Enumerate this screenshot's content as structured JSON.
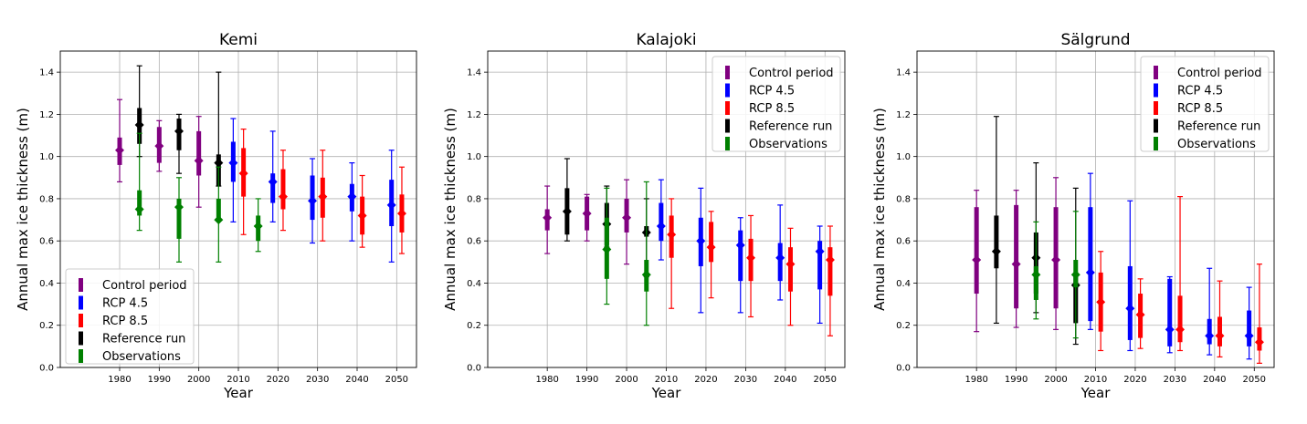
{
  "colors": {
    "control": "#800080",
    "rcp45": "#0000ff",
    "rcp85": "#ff0000",
    "reference": "#000000",
    "observations": "#008000",
    "grid": "#b0b0b0",
    "axis": "#000000"
  },
  "chart_data": [
    {
      "type": "errorbar",
      "title": "Kemi",
      "xlabel": "Year",
      "ylabel": "Annual max ice thickness (m)",
      "xlim": [
        1965,
        2055
      ],
      "ylim": [
        0.0,
        1.5
      ],
      "xticks": [
        "1980",
        "1990",
        "2000",
        "2010",
        "2020",
        "2030",
        "2040",
        "2050"
      ],
      "yticks": [
        "0.0",
        "0.2",
        "0.4",
        "0.6",
        "0.8",
        "1.0",
        "1.2",
        "1.4"
      ],
      "grid": true,
      "legend": "lower-left",
      "legend_entries": [
        "Control period",
        "RCP 4.5",
        "RCP 8.5",
        "Reference run",
        "Observations"
      ],
      "series": [
        {
          "name": "Control period",
          "color_key": "control",
          "points": [
            {
              "x": 1980,
              "median": 1.03,
              "q1": 0.96,
              "q3": 1.09,
              "min": 0.88,
              "max": 1.27
            },
            {
              "x": 1990,
              "median": 1.05,
              "q1": 0.97,
              "q3": 1.14,
              "min": 0.93,
              "max": 1.17
            },
            {
              "x": 2000,
              "median": 0.98,
              "q1": 0.91,
              "q3": 1.12,
              "min": 0.76,
              "max": 1.19
            }
          ]
        },
        {
          "name": "RCP 4.5",
          "color_key": "rcp45",
          "points": [
            {
              "x": 2010,
              "median": 0.97,
              "q1": 0.88,
              "q3": 1.07,
              "min": 0.69,
              "max": 1.18
            },
            {
              "x": 2020,
              "median": 0.88,
              "q1": 0.78,
              "q3": 0.92,
              "min": 0.69,
              "max": 1.12
            },
            {
              "x": 2030,
              "median": 0.79,
              "q1": 0.7,
              "q3": 0.91,
              "min": 0.59,
              "max": 0.99
            },
            {
              "x": 2040,
              "median": 0.81,
              "q1": 0.74,
              "q3": 0.87,
              "min": 0.6,
              "max": 0.97
            },
            {
              "x": 2050,
              "median": 0.77,
              "q1": 0.67,
              "q3": 0.89,
              "min": 0.5,
              "max": 1.03
            }
          ]
        },
        {
          "name": "RCP 8.5",
          "color_key": "rcp85",
          "points": [
            {
              "x": 2010,
              "median": 0.92,
              "q1": 0.81,
              "q3": 1.04,
              "min": 0.63,
              "max": 1.13
            },
            {
              "x": 2020,
              "median": 0.81,
              "q1": 0.75,
              "q3": 0.94,
              "min": 0.65,
              "max": 1.03
            },
            {
              "x": 2030,
              "median": 0.81,
              "q1": 0.71,
              "q3": 0.9,
              "min": 0.6,
              "max": 1.03
            },
            {
              "x": 2040,
              "median": 0.72,
              "q1": 0.63,
              "q3": 0.81,
              "min": 0.57,
              "max": 0.91
            },
            {
              "x": 2050,
              "median": 0.73,
              "q1": 0.64,
              "q3": 0.82,
              "min": 0.54,
              "max": 0.95
            }
          ]
        },
        {
          "name": "Reference run",
          "color_key": "reference",
          "points": [
            {
              "x": 1985,
              "median": 1.15,
              "q1": 1.06,
              "q3": 1.23,
              "min": 1.0,
              "max": 1.43
            },
            {
              "x": 1995,
              "median": 1.12,
              "q1": 1.03,
              "q3": 1.18,
              "min": 0.92,
              "max": 1.2
            },
            {
              "x": 2005,
              "median": 0.97,
              "q1": 0.86,
              "q3": 1.01,
              "min": 0.86,
              "max": 1.4
            }
          ]
        },
        {
          "name": "Observations",
          "color_key": "observations",
          "points": [
            {
              "x": 1985,
              "median": 0.75,
              "q1": 0.72,
              "q3": 0.84,
              "min": 0.65,
              "max": 1.11
            },
            {
              "x": 1995,
              "median": 0.76,
              "q1": 0.61,
              "q3": 0.8,
              "min": 0.5,
              "max": 0.9
            },
            {
              "x": 2005,
              "median": 0.7,
              "q1": 0.69,
              "q3": 0.8,
              "min": 0.5,
              "max": 0.95
            },
            {
              "x": 2015,
              "median": 0.67,
              "q1": 0.6,
              "q3": 0.72,
              "min": 0.55,
              "max": 0.8
            }
          ]
        }
      ]
    },
    {
      "type": "errorbar",
      "title": "Kalajoki",
      "xlabel": "Year",
      "ylabel": "Annual max ice thickness (m)",
      "xlim": [
        1965,
        2055
      ],
      "ylim": [
        0.0,
        1.5
      ],
      "xticks": [
        "1980",
        "1990",
        "2000",
        "2010",
        "2020",
        "2030",
        "2040",
        "2050"
      ],
      "yticks": [
        "0.0",
        "0.2",
        "0.4",
        "0.6",
        "0.8",
        "1.0",
        "1.2",
        "1.4"
      ],
      "grid": true,
      "legend": "upper-right",
      "legend_entries": [
        "Control period",
        "RCP 4.5",
        "RCP 8.5",
        "Reference run",
        "Observations"
      ],
      "series": [
        {
          "name": "Control period",
          "color_key": "control",
          "points": [
            {
              "x": 1980,
              "median": 0.71,
              "q1": 0.65,
              "q3": 0.75,
              "min": 0.54,
              "max": 0.86
            },
            {
              "x": 1990,
              "median": 0.73,
              "q1": 0.65,
              "q3": 0.81,
              "min": 0.6,
              "max": 0.82
            },
            {
              "x": 2000,
              "median": 0.71,
              "q1": 0.64,
              "q3": 0.8,
              "min": 0.49,
              "max": 0.89
            }
          ]
        },
        {
          "name": "RCP 4.5",
          "color_key": "rcp45",
          "points": [
            {
              "x": 2010,
              "median": 0.67,
              "q1": 0.6,
              "q3": 0.78,
              "min": 0.51,
              "max": 0.89
            },
            {
              "x": 2020,
              "median": 0.6,
              "q1": 0.48,
              "q3": 0.71,
              "min": 0.26,
              "max": 0.85
            },
            {
              "x": 2030,
              "median": 0.58,
              "q1": 0.41,
              "q3": 0.65,
              "min": 0.26,
              "max": 0.71
            },
            {
              "x": 2040,
              "median": 0.52,
              "q1": 0.41,
              "q3": 0.59,
              "min": 0.32,
              "max": 0.77
            },
            {
              "x": 2050,
              "median": 0.55,
              "q1": 0.37,
              "q3": 0.6,
              "min": 0.21,
              "max": 0.67
            }
          ]
        },
        {
          "name": "RCP 8.5",
          "color_key": "rcp85",
          "points": [
            {
              "x": 2010,
              "median": 0.63,
              "q1": 0.52,
              "q3": 0.72,
              "min": 0.28,
              "max": 0.8
            },
            {
              "x": 2020,
              "median": 0.57,
              "q1": 0.5,
              "q3": 0.69,
              "min": 0.33,
              "max": 0.74
            },
            {
              "x": 2030,
              "median": 0.52,
              "q1": 0.41,
              "q3": 0.61,
              "min": 0.24,
              "max": 0.72
            },
            {
              "x": 2040,
              "median": 0.49,
              "q1": 0.36,
              "q3": 0.57,
              "min": 0.2,
              "max": 0.66
            },
            {
              "x": 2050,
              "median": 0.51,
              "q1": 0.34,
              "q3": 0.57,
              "min": 0.15,
              "max": 0.67
            }
          ]
        },
        {
          "name": "Reference run",
          "color_key": "reference",
          "points": [
            {
              "x": 1985,
              "median": 0.74,
              "q1": 0.63,
              "q3": 0.85,
              "min": 0.6,
              "max": 0.99
            },
            {
              "x": 1995,
              "median": 0.68,
              "q1": 0.58,
              "q3": 0.78,
              "min": 0.57,
              "max": 0.86
            },
            {
              "x": 2005,
              "median": 0.64,
              "q1": 0.62,
              "q3": 0.67,
              "min": 0.43,
              "max": 0.8
            }
          ]
        },
        {
          "name": "Observations",
          "color_key": "observations",
          "points": [
            {
              "x": 1995,
              "median": 0.56,
              "q1": 0.42,
              "q3": 0.71,
              "min": 0.3,
              "max": 0.85
            },
            {
              "x": 2005,
              "median": 0.44,
              "q1": 0.36,
              "q3": 0.51,
              "min": 0.2,
              "max": 0.88
            }
          ]
        }
      ]
    },
    {
      "type": "errorbar",
      "title": "Sälgrund",
      "xlabel": "Year",
      "ylabel": "Annual max ice thickness (m)",
      "xlim": [
        1965,
        2055
      ],
      "ylim": [
        0.0,
        1.5
      ],
      "xticks": [
        "1980",
        "1990",
        "2000",
        "2010",
        "2020",
        "2030",
        "2040",
        "2050"
      ],
      "yticks": [
        "0.0",
        "0.2",
        "0.4",
        "0.6",
        "0.8",
        "1.0",
        "1.2",
        "1.4"
      ],
      "grid": true,
      "legend": "upper-right",
      "legend_entries": [
        "Control period",
        "RCP 4.5",
        "RCP 8.5",
        "Reference run",
        "Observations"
      ],
      "series": [
        {
          "name": "Control period",
          "color_key": "control",
          "points": [
            {
              "x": 1980,
              "median": 0.51,
              "q1": 0.35,
              "q3": 0.76,
              "min": 0.17,
              "max": 0.84
            },
            {
              "x": 1990,
              "median": 0.49,
              "q1": 0.28,
              "q3": 0.77,
              "min": 0.19,
              "max": 0.84
            },
            {
              "x": 2000,
              "median": 0.51,
              "q1": 0.28,
              "q3": 0.76,
              "min": 0.18,
              "max": 0.9
            }
          ]
        },
        {
          "name": "RCP 4.5",
          "color_key": "rcp45",
          "points": [
            {
              "x": 2010,
              "median": 0.45,
              "q1": 0.22,
              "q3": 0.76,
              "min": 0.18,
              "max": 0.92
            },
            {
              "x": 2020,
              "median": 0.28,
              "q1": 0.13,
              "q3": 0.48,
              "min": 0.08,
              "max": 0.79
            },
            {
              "x": 2030,
              "median": 0.18,
              "q1": 0.1,
              "q3": 0.42,
              "min": 0.07,
              "max": 0.43
            },
            {
              "x": 2040,
              "median": 0.15,
              "q1": 0.11,
              "q3": 0.23,
              "min": 0.06,
              "max": 0.47
            },
            {
              "x": 2050,
              "median": 0.15,
              "q1": 0.1,
              "q3": 0.27,
              "min": 0.04,
              "max": 0.38
            }
          ]
        },
        {
          "name": "RCP 8.5",
          "color_key": "rcp85",
          "points": [
            {
              "x": 2010,
              "median": 0.31,
              "q1": 0.17,
              "q3": 0.45,
              "min": 0.08,
              "max": 0.55
            },
            {
              "x": 2020,
              "median": 0.25,
              "q1": 0.14,
              "q3": 0.35,
              "min": 0.09,
              "max": 0.42
            },
            {
              "x": 2030,
              "median": 0.18,
              "q1": 0.12,
              "q3": 0.34,
              "min": 0.08,
              "max": 0.81
            },
            {
              "x": 2040,
              "median": 0.15,
              "q1": 0.1,
              "q3": 0.24,
              "min": 0.05,
              "max": 0.41
            },
            {
              "x": 2050,
              "median": 0.12,
              "q1": 0.08,
              "q3": 0.19,
              "min": 0.02,
              "max": 0.49
            }
          ]
        },
        {
          "name": "Reference run",
          "color_key": "reference",
          "points": [
            {
              "x": 1985,
              "median": 0.55,
              "q1": 0.47,
              "q3": 0.72,
              "min": 0.21,
              "max": 1.19
            },
            {
              "x": 1995,
              "median": 0.52,
              "q1": 0.35,
              "q3": 0.64,
              "min": 0.26,
              "max": 0.97
            },
            {
              "x": 2005,
              "median": 0.39,
              "q1": 0.21,
              "q3": 0.43,
              "min": 0.11,
              "max": 0.85
            }
          ]
        },
        {
          "name": "Observations",
          "color_key": "observations",
          "points": [
            {
              "x": 1995,
              "median": 0.44,
              "q1": 0.32,
              "q3": 0.48,
              "min": 0.23,
              "max": 0.69
            },
            {
              "x": 2005,
              "median": 0.44,
              "q1": 0.38,
              "q3": 0.51,
              "min": 0.14,
              "max": 0.74
            }
          ]
        }
      ]
    }
  ]
}
